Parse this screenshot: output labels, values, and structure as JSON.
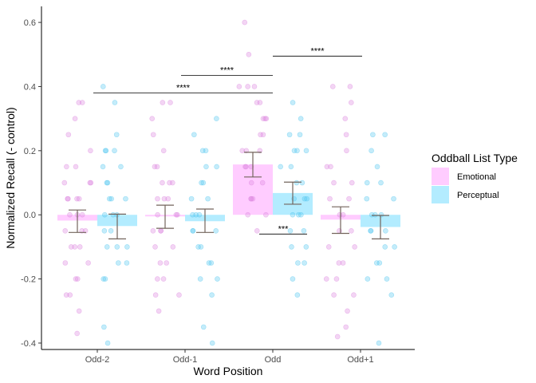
{
  "chart_data": {
    "type": "bar",
    "xlabel": "Word Position",
    "ylabel": "Normalized Recall (- control)",
    "ylim": [
      -0.42,
      0.65
    ],
    "yticks": [
      -0.4,
      -0.2,
      0.0,
      0.2,
      0.4,
      0.6
    ],
    "ytick_labels": [
      "-0.4",
      "-0.2",
      "0.0",
      "0.2",
      "0.4",
      "0.6"
    ],
    "categories": [
      "Odd-2",
      "Odd-1",
      "Odd",
      "Odd+1"
    ],
    "legend": {
      "title": "Oddball List Type",
      "position": "right"
    },
    "series": [
      {
        "name": "Emotional",
        "bar_color": "#ffccff",
        "point_color": "#dd88e0",
        "errbar_color": "#73645c",
        "values": [
          -0.018,
          -0.005,
          0.157,
          -0.015
        ],
        "error_low": [
          -0.055,
          -0.042,
          0.118,
          -0.058
        ],
        "error_high": [
          0.015,
          0.03,
          0.195,
          0.025
        ],
        "points": [
          [
            -0.37,
            -0.3,
            -0.25,
            -0.25,
            -0.2,
            -0.2,
            -0.15,
            -0.15,
            -0.1,
            -0.1,
            -0.1,
            -0.05,
            -0.05,
            -0.05,
            0.0,
            0.0,
            0.0,
            0.05,
            0.05,
            0.05,
            0.05,
            0.1,
            0.1,
            0.1,
            0.15,
            0.15,
            0.2,
            0.25,
            0.3,
            0.35,
            0.35
          ],
          [
            -0.3,
            -0.25,
            -0.25,
            -0.2,
            -0.2,
            -0.15,
            -0.15,
            -0.1,
            -0.1,
            -0.05,
            -0.05,
            -0.05,
            0.0,
            0.0,
            0.0,
            0.05,
            0.05,
            0.05,
            0.1,
            0.1,
            0.1,
            0.15,
            0.15,
            0.2,
            0.25,
            0.3,
            0.35,
            0.35
          ],
          [
            -0.05,
            0.0,
            0.0,
            0.05,
            0.05,
            0.05,
            0.1,
            0.1,
            0.15,
            0.15,
            0.15,
            0.2,
            0.2,
            0.2,
            0.25,
            0.25,
            0.3,
            0.3,
            0.3,
            0.35,
            0.35,
            0.4,
            0.4,
            0.4,
            0.5,
            0.6
          ],
          [
            -0.38,
            -0.35,
            -0.3,
            -0.25,
            -0.25,
            -0.2,
            -0.2,
            -0.15,
            -0.15,
            -0.1,
            -0.1,
            -0.05,
            -0.05,
            0.0,
            0.0,
            0.05,
            0.05,
            0.1,
            0.1,
            0.15,
            0.15,
            0.2,
            0.25,
            0.3,
            0.35,
            0.4,
            0.4
          ]
        ]
      },
      {
        "name": "Perceptual",
        "bar_color": "#b3ecff",
        "point_color": "#55c8f0",
        "errbar_color": "#73645c",
        "values": [
          -0.035,
          -0.02,
          0.068,
          -0.038
        ],
        "error_low": [
          -0.075,
          -0.055,
          0.033,
          -0.075
        ],
        "error_high": [
          0.002,
          0.018,
          0.102,
          -0.002
        ],
        "points": [
          [
            -0.4,
            -0.35,
            -0.2,
            -0.2,
            -0.15,
            -0.15,
            -0.1,
            -0.1,
            -0.1,
            -0.05,
            -0.05,
            0.0,
            0.0,
            0.0,
            0.05,
            0.05,
            0.05,
            0.1,
            0.1,
            0.15,
            0.15,
            0.2,
            0.2,
            0.2,
            0.25,
            0.35,
            0.4
          ],
          [
            -0.4,
            -0.35,
            -0.25,
            -0.2,
            -0.2,
            -0.15,
            -0.15,
            -0.1,
            -0.1,
            -0.05,
            -0.05,
            -0.05,
            0.0,
            0.0,
            0.0,
            0.05,
            0.05,
            0.1,
            0.1,
            0.15,
            0.15,
            0.2,
            0.2,
            0.25,
            0.3
          ],
          [
            -0.25,
            -0.2,
            -0.15,
            -0.15,
            -0.1,
            -0.1,
            -0.05,
            -0.05,
            0.0,
            0.0,
            0.0,
            0.05,
            0.05,
            0.05,
            0.1,
            0.1,
            0.15,
            0.15,
            0.2,
            0.2,
            0.2,
            0.25,
            0.25,
            0.3,
            0.35
          ],
          [
            -0.4,
            -0.25,
            -0.2,
            -0.2,
            -0.15,
            -0.15,
            -0.1,
            -0.1,
            -0.05,
            -0.05,
            -0.05,
            0.0,
            0.0,
            0.0,
            0.05,
            0.05,
            0.1,
            0.1,
            0.15,
            0.2,
            0.25,
            0.25
          ]
        ]
      }
    ],
    "significance": [
      {
        "from": "Odd-2",
        "to": "Odd",
        "y": 0.38,
        "label": "****"
      },
      {
        "from": "Odd-1",
        "to": "Odd",
        "y": 0.435,
        "label": "****"
      },
      {
        "from": "Odd",
        "to": "Odd+1",
        "y": 0.495,
        "label": "****"
      },
      {
        "from": "Odd",
        "to": "Odd",
        "y": -0.06,
        "label": "***",
        "within": true
      }
    ]
  }
}
